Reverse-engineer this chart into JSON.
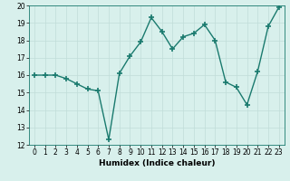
{
  "x": [
    0,
    1,
    2,
    3,
    4,
    5,
    6,
    7,
    8,
    9,
    10,
    11,
    12,
    13,
    14,
    15,
    16,
    17,
    18,
    19,
    20,
    21,
    22,
    23
  ],
  "y": [
    16.0,
    16.0,
    16.0,
    15.8,
    15.5,
    15.2,
    15.1,
    12.3,
    16.1,
    17.1,
    17.9,
    19.3,
    18.5,
    17.5,
    18.2,
    18.4,
    18.9,
    18.0,
    15.6,
    15.3,
    14.3,
    16.2,
    18.8,
    19.9
  ],
  "line_color": "#1a7a6e",
  "marker": "+",
  "marker_size": 4,
  "bg_color": "#d8f0ec",
  "grid_color": "#c0ddd8",
  "xlabel": "Humidex (Indice chaleur)",
  "xlim": [
    -0.5,
    23.5
  ],
  "ylim": [
    12,
    20
  ],
  "yticks": [
    12,
    13,
    14,
    15,
    16,
    17,
    18,
    19,
    20
  ],
  "xticks": [
    0,
    1,
    2,
    3,
    4,
    5,
    6,
    7,
    8,
    9,
    10,
    11,
    12,
    13,
    14,
    15,
    16,
    17,
    18,
    19,
    20,
    21,
    22,
    23
  ],
  "xlabel_fontsize": 6.5,
  "tick_fontsize": 5.5,
  "linewidth": 1.0,
  "marker_linewidth": 1.2
}
